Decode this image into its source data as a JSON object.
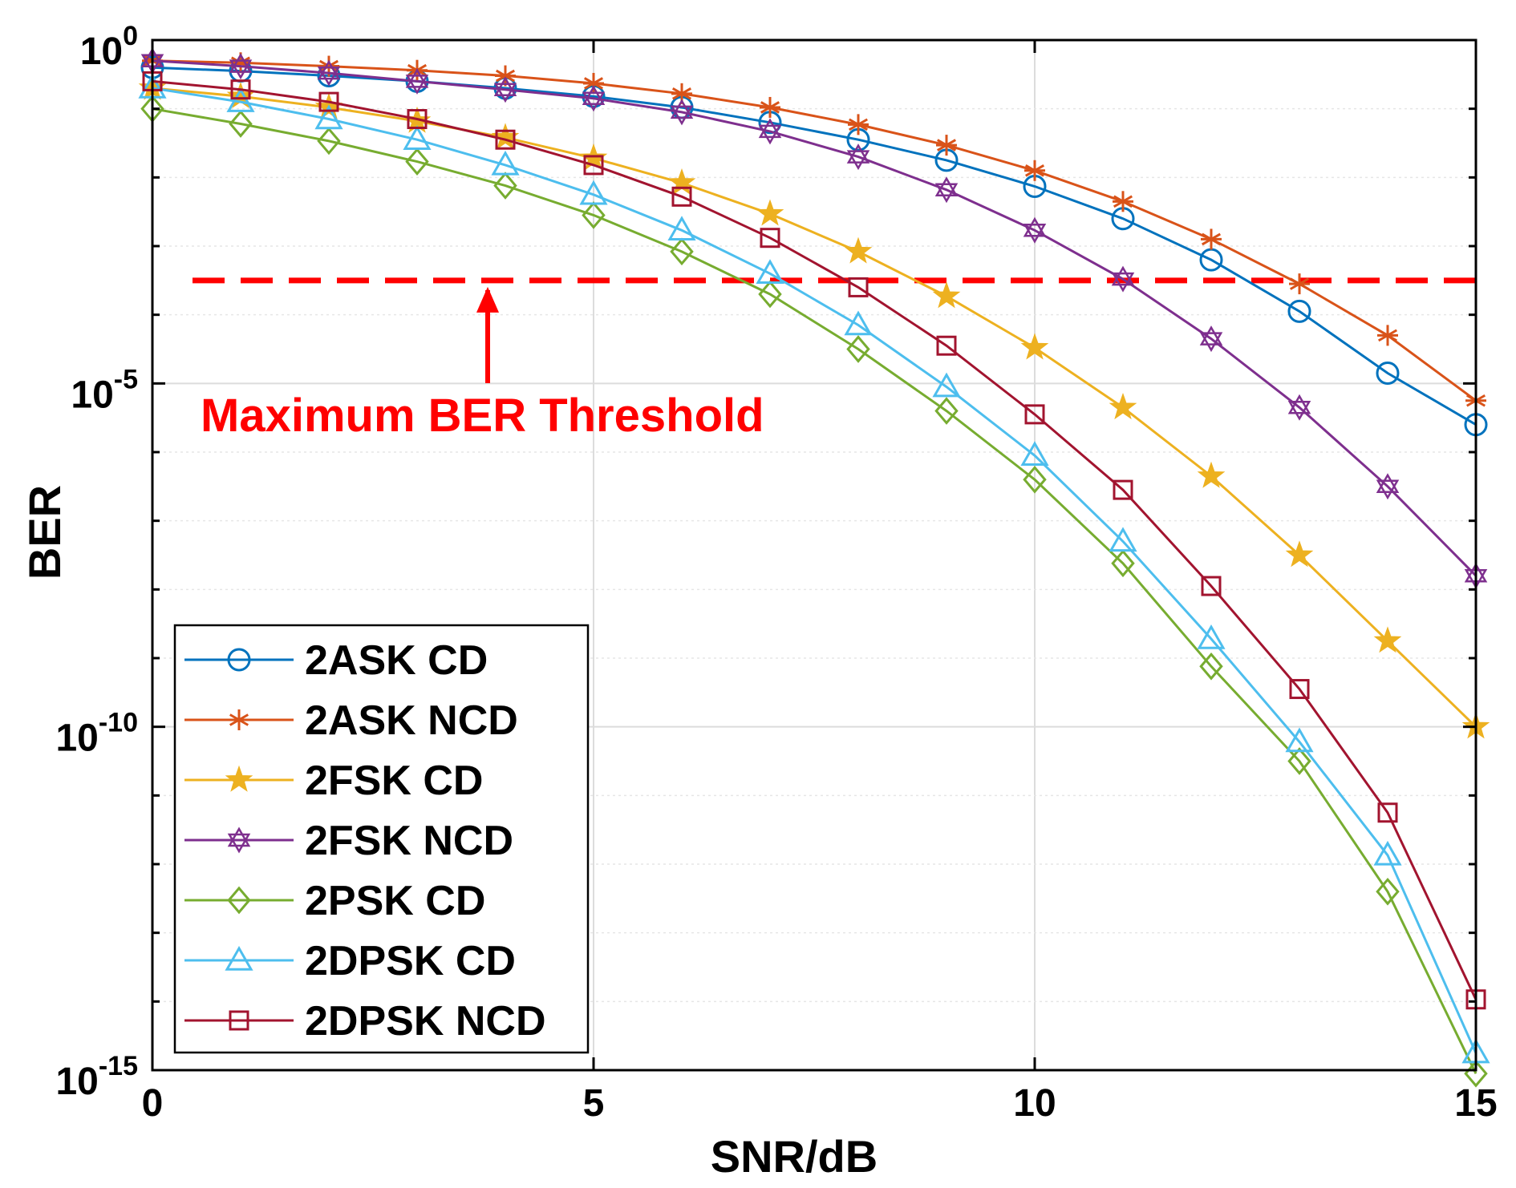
{
  "chart_data": {
    "type": "line",
    "title": "",
    "xlabel": "SNR/dB",
    "ylabel": "BER",
    "xlim": [
      0,
      15
    ],
    "ylim_log10": [
      -15,
      0
    ],
    "yscale": "log",
    "grid": true,
    "legend_position": "bottom-left",
    "x_ticks": [
      {
        "value": 0,
        "label": "0"
      },
      {
        "value": 5,
        "label": "5"
      },
      {
        "value": 10,
        "label": "10"
      },
      {
        "value": 15,
        "label": "15"
      }
    ],
    "y_ticks": [
      {
        "exp": 0,
        "base": "10",
        "sup": "0"
      },
      {
        "exp": -5,
        "base": "10",
        "sup": "-5"
      },
      {
        "exp": -10,
        "base": "10",
        "sup": "-10"
      },
      {
        "exp": -15,
        "base": "10",
        "sup": "-15"
      }
    ],
    "x": [
      0,
      1,
      2,
      3,
      4,
      5,
      6,
      7,
      8,
      9,
      10,
      11,
      12,
      13,
      14,
      15
    ],
    "series": [
      {
        "name": "2ASK CD",
        "color": "#0072BD",
        "marker": "circle",
        "log10_values": [
          -0.4,
          -0.45,
          -0.52,
          -0.6,
          -0.7,
          -0.82,
          -0.98,
          -1.2,
          -1.45,
          -1.75,
          -2.13,
          -2.6,
          -3.2,
          -3.95,
          -4.85,
          -5.6
        ]
      },
      {
        "name": "2ASK NCD",
        "color": "#D95319",
        "marker": "asterisk",
        "log10_values": [
          -0.3,
          -0.33,
          -0.38,
          -0.44,
          -0.52,
          -0.63,
          -0.78,
          -0.98,
          -1.23,
          -1.53,
          -1.9,
          -2.35,
          -2.9,
          -3.55,
          -4.3,
          -5.25
        ]
      },
      {
        "name": "2FSK CD",
        "color": "#EDB120",
        "marker": "star",
        "log10_values": [
          -0.7,
          -0.82,
          -0.98,
          -1.18,
          -1.42,
          -1.72,
          -2.08,
          -2.53,
          -3.08,
          -3.73,
          -4.48,
          -5.35,
          -6.35,
          -7.5,
          -8.75,
          -10.0
        ]
      },
      {
        "name": "2FSK NCD",
        "color": "#7E2F8E",
        "marker": "hexagram",
        "log10_values": [
          -0.3,
          -0.38,
          -0.48,
          -0.6,
          -0.72,
          -0.85,
          -1.05,
          -1.33,
          -1.7,
          -2.18,
          -2.77,
          -3.48,
          -4.35,
          -5.35,
          -6.5,
          -7.8
        ]
      },
      {
        "name": "2PSK CD",
        "color": "#77AC30",
        "marker": "diamond",
        "log10_values": [
          -1.0,
          -1.22,
          -1.47,
          -1.77,
          -2.12,
          -2.55,
          -3.08,
          -3.7,
          -4.5,
          -5.4,
          -6.4,
          -7.62,
          -9.12,
          -10.5,
          -12.4,
          -15.05
        ]
      },
      {
        "name": "2DPSK CD",
        "color": "#4DBEEE",
        "marker": "triangle",
        "log10_values": [
          -0.7,
          -0.9,
          -1.15,
          -1.45,
          -1.82,
          -2.25,
          -2.77,
          -3.4,
          -4.15,
          -5.05,
          -6.05,
          -7.3,
          -8.72,
          -10.22,
          -11.87,
          -14.75
        ]
      },
      {
        "name": "2DPSK NCD",
        "color": "#A2142F",
        "marker": "square",
        "log10_values": [
          -0.6,
          -0.72,
          -0.9,
          -1.15,
          -1.45,
          -1.82,
          -2.28,
          -2.88,
          -3.6,
          -4.45,
          -5.45,
          -6.55,
          -7.95,
          -9.45,
          -11.25,
          -13.97
        ]
      }
    ],
    "threshold": {
      "log10_value": -3.5,
      "label": "Maximum BER Threshold",
      "color": "#FF0000",
      "arrow_x": 3.8
    }
  }
}
